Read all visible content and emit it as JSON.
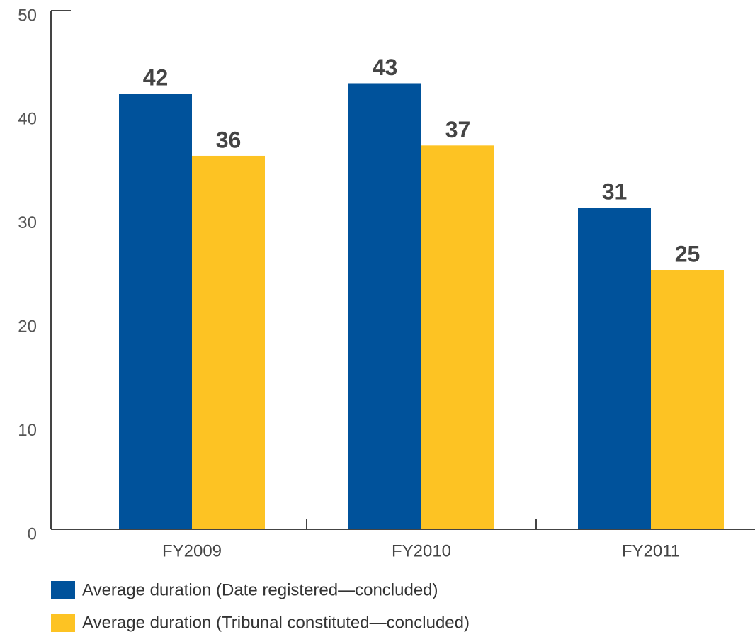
{
  "chart_data": {
    "type": "bar",
    "categories": [
      "FY2009",
      "FY2010",
      "FY2011"
    ],
    "series": [
      {
        "name": "Average duration (Date registered—concluded)",
        "color": "#00529b",
        "values": [
          42,
          43,
          31
        ]
      },
      {
        "name": "Average duration (Tribunal constituted—concluded)",
        "color": "#fdc323",
        "values": [
          36,
          37,
          25
        ]
      }
    ],
    "ylim": [
      0,
      50
    ],
    "yticks": [
      0,
      10,
      20,
      30,
      40,
      50
    ],
    "grid": false,
    "legend": "bottom"
  }
}
